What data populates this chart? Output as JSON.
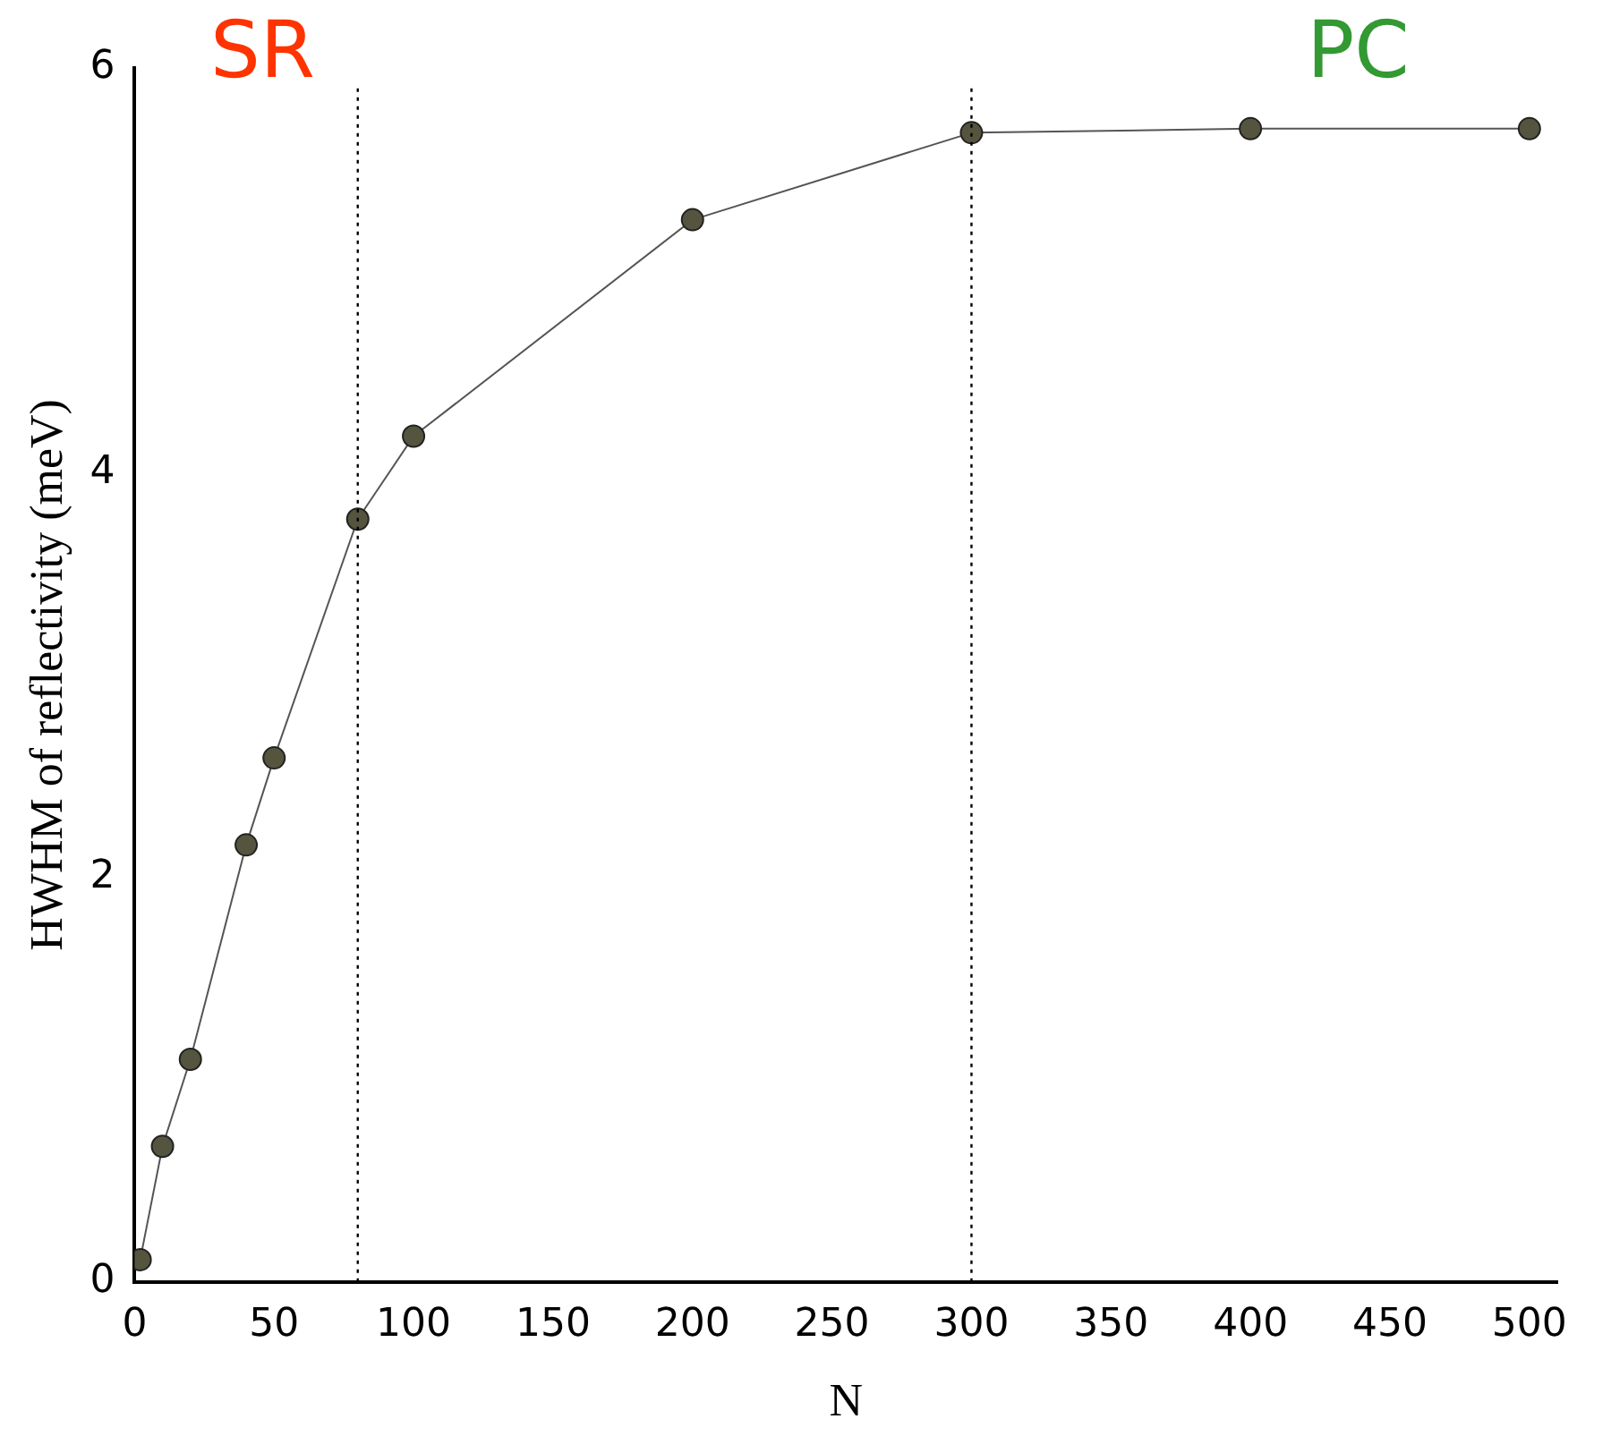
{
  "chart_data": {
    "type": "line",
    "xlabel": "N",
    "ylabel": "HWHM of reflectivity (meV)",
    "x": [
      2,
      10,
      20,
      40,
      50,
      80,
      100,
      200,
      300,
      400,
      500
    ],
    "series": [
      {
        "color": "#55553f",
        "values": [
          0.11,
          0.67,
          1.1,
          2.16,
          2.59,
          3.77,
          4.18,
          5.25,
          5.68,
          5.7,
          5.7
        ]
      }
    ],
    "xlim": [
      0,
      510
    ],
    "xticks": [
      0,
      50,
      100,
      150,
      200,
      250,
      300,
      350,
      400,
      450,
      500
    ],
    "ylim": [
      0,
      6
    ],
    "yticks": [
      0,
      2,
      4,
      6
    ],
    "ref_lines": [
      {
        "axis": "x",
        "value": 80,
        "line_style": "dotted",
        "color": "#000000"
      },
      {
        "axis": "x",
        "value": 300,
        "line_style": "dotted",
        "color": "#000000"
      }
    ],
    "annotations": [
      "SR",
      "PC"
    ],
    "marker": "circle",
    "line_style": "solid",
    "grid": false,
    "legend": false
  }
}
